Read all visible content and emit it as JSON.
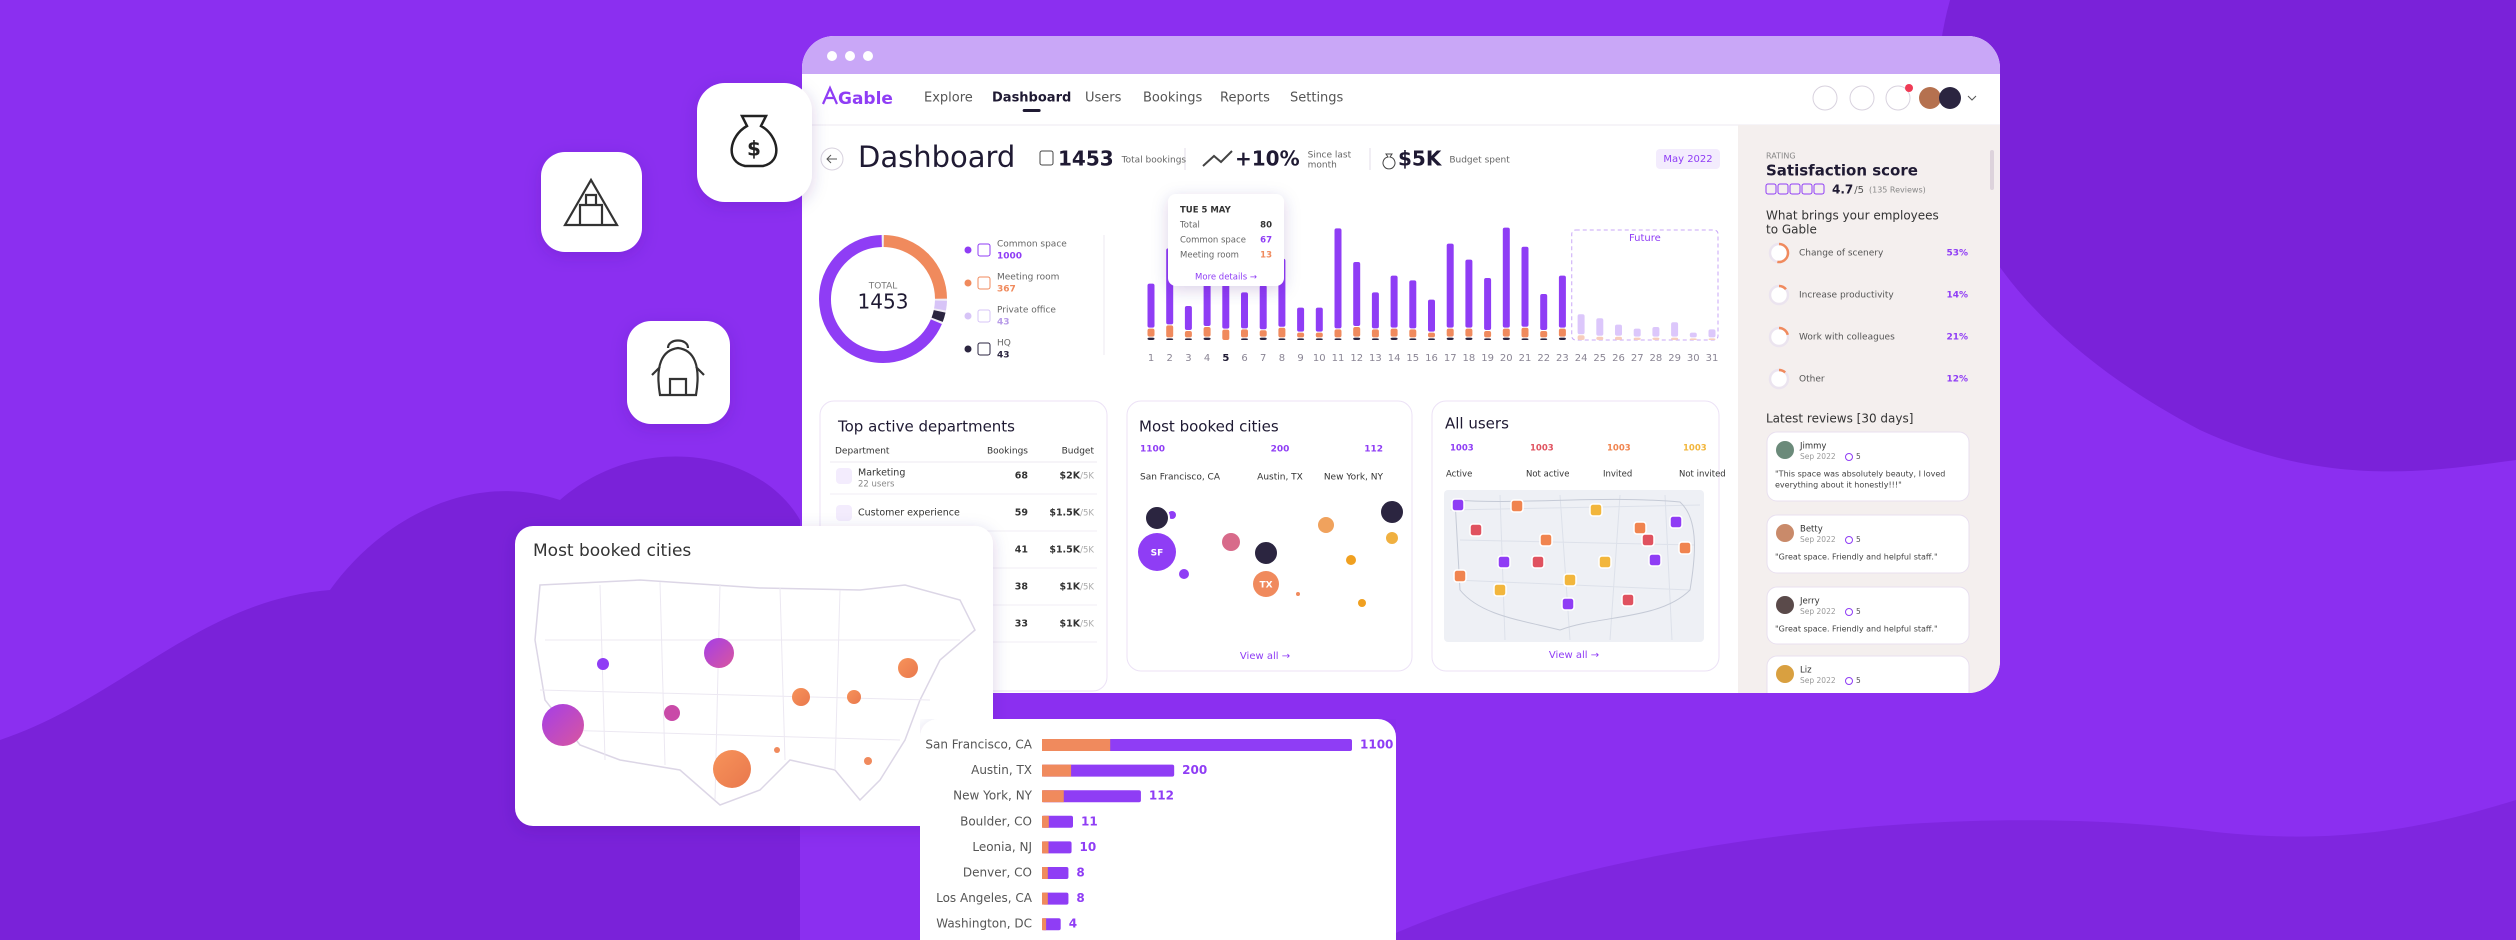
{
  "window": {
    "brand": "Gable",
    "nav": [
      "Explore",
      "Dashboard",
      "Users",
      "Bookings",
      "Reports",
      "Settings"
    ]
  },
  "header": {
    "title": "Dashboard",
    "stats": [
      {
        "value": "1453",
        "label": [
          "Total bookings"
        ]
      },
      {
        "value": "+10%",
        "label": [
          "Since last",
          "month"
        ]
      },
      {
        "value": "$5K",
        "label": [
          "Budget spent"
        ]
      }
    ],
    "date": "May 2022"
  },
  "donut": {
    "center_label": "TOTAL",
    "total": 1453,
    "segments": [
      {
        "name": "Common space",
        "value": 1000,
        "color": "#8f3df5"
      },
      {
        "name": "Meeting room",
        "value": 367,
        "color": "#f08a5d"
      },
      {
        "name": "Private office",
        "value": 43,
        "color": "#d7c4f7"
      },
      {
        "name": "HQ",
        "value": 43,
        "color": "#2b2540"
      }
    ]
  },
  "daily": {
    "days": [
      1,
      2,
      3,
      4,
      5,
      6,
      7,
      8,
      9,
      10,
      11,
      12,
      13,
      14,
      15,
      16,
      17,
      18,
      19,
      20,
      21,
      22,
      23,
      24,
      25,
      26,
      27,
      28,
      29,
      30,
      31
    ],
    "series": [
      {
        "color": "#2b2540",
        "future_color": "#cfc8dc",
        "values": [
          3,
          2,
          2,
          3,
          0,
          2,
          3,
          2,
          2,
          2,
          2,
          3,
          2,
          3,
          2,
          2,
          3,
          3,
          2,
          3,
          2,
          2,
          3,
          0,
          0,
          0,
          0,
          0,
          0,
          0,
          0
        ]
      },
      {
        "color": "#f08a5d",
        "future_color": "#f7cdbd",
        "values": [
          10,
          15,
          8,
          12,
          13,
          10,
          8,
          12,
          6,
          6,
          10,
          12,
          10,
          10,
          10,
          6,
          10,
          10,
          8,
          10,
          12,
          8,
          10,
          6,
          4,
          4,
          3,
          3,
          3,
          2,
          2
        ]
      },
      {
        "color": "#8f3df5",
        "future_color": "#dcc7fb",
        "values": [
          55,
          95,
          30,
          75,
          67,
          45,
          55,
          85,
          30,
          30,
          125,
          80,
          45,
          65,
          60,
          40,
          105,
          85,
          65,
          125,
          100,
          45,
          65,
          25,
          22,
          14,
          10,
          12,
          18,
          6,
          10
        ]
      }
    ],
    "future": {
      "label": "Future",
      "from_day": 24
    },
    "tooltip": {
      "date": "TUE 5 MAY",
      "rows": [
        {
          "label": "Total",
          "value": 80
        },
        {
          "label": "Common space",
          "value": 67
        },
        {
          "label": "Meeting room",
          "value": 13
        }
      ],
      "link": "More details →"
    }
  },
  "departments": {
    "title": "Top active departments",
    "columns": [
      "Department",
      "Bookings",
      "Budget"
    ],
    "rows": [
      {
        "name": "Marketing",
        "users": "22 users",
        "bookings": 68,
        "budget": "$2K",
        "budget_total": "/5K"
      },
      {
        "name": "Customer experience",
        "bookings": 59,
        "budget": "$1.5K",
        "budget_total": "/5K"
      },
      {
        "bookings": 41,
        "budget": "$1.5K",
        "budget_total": "/5K"
      },
      {
        "bookings": 38,
        "budget": "$1K",
        "budget_total": "/5K"
      },
      {
        "bookings": 33,
        "budget": "$1K",
        "budget_total": "/5K"
      }
    ]
  },
  "cities_card": {
    "title": "Most booked cities",
    "cities": [
      {
        "name": "San Francisco, CA",
        "count": 1100,
        "code": "SF"
      },
      {
        "name": "Austin, TX",
        "count": 200,
        "code": "TX"
      },
      {
        "name": "New York, NY",
        "count": 112
      }
    ],
    "link": "View all →"
  },
  "users_card": {
    "title": "All users",
    "groups": [
      {
        "label": "Active",
        "count": 1003,
        "color": "#8f3df5"
      },
      {
        "label": "Not active",
        "count": 1003,
        "color": "#e0525f"
      },
      {
        "label": "Invited",
        "count": 1003,
        "color": "#f0844f"
      },
      {
        "label": "Not invited",
        "count": 1003,
        "color": "#f2b63c"
      }
    ],
    "link": "View all →"
  },
  "panel": {
    "rating_label": "RATING",
    "title": "Satisfaction score",
    "score": "4.7",
    "score_max": "/5",
    "reviews_count": "(135 Reviews)",
    "question": [
      "What brings your employees",
      "to Gable"
    ],
    "reasons": [
      {
        "label": "Change of scenery",
        "percent": 53,
        "percent_label": "53%"
      },
      {
        "label": "Increase productivity",
        "percent": 14,
        "percent_label": "14%"
      },
      {
        "label": "Work with colleagues",
        "percent": 21,
        "percent_label": "21%"
      },
      {
        "label": "Other",
        "percent": 12,
        "percent_label": "12%"
      }
    ]
  },
  "reviews": {
    "title": "Latest reviews [30 days]",
    "items": [
      {
        "name": "Jimmy",
        "date": "Sep 2022",
        "rating": 5,
        "text": [
          "\"This space was absolutely beauty, I loved",
          "everything about it honestly!!!\""
        ]
      },
      {
        "name": "Betty",
        "date": "Sep 2022",
        "rating": 5,
        "text": [
          "\"Great space. Friendly and helpful staff.\""
        ]
      },
      {
        "name": "Jerry",
        "date": "Sep 2022",
        "rating": 5,
        "text": [
          "\"Great space. Friendly and helpful staff.\""
        ]
      },
      {
        "name": "Liz",
        "date": "Sep 2022",
        "rating": 5,
        "text": []
      }
    ]
  },
  "map_card": {
    "title": "Most booked cities"
  },
  "booked_cities_chart": {
    "type": "bar",
    "orientation": "horizontal",
    "scale": "sqrt",
    "categories": [
      "San Francisco, CA",
      "Austin, TX",
      "New York, NY",
      "Boulder, CO",
      "Leonia, NJ",
      "Denver, CO",
      "Los Angeles, CA",
      "Washington, DC"
    ],
    "values": [
      1100,
      200,
      112,
      11,
      10,
      8,
      8,
      4
    ],
    "color": "#8f3df5",
    "lead_color": "#f08a5d"
  }
}
